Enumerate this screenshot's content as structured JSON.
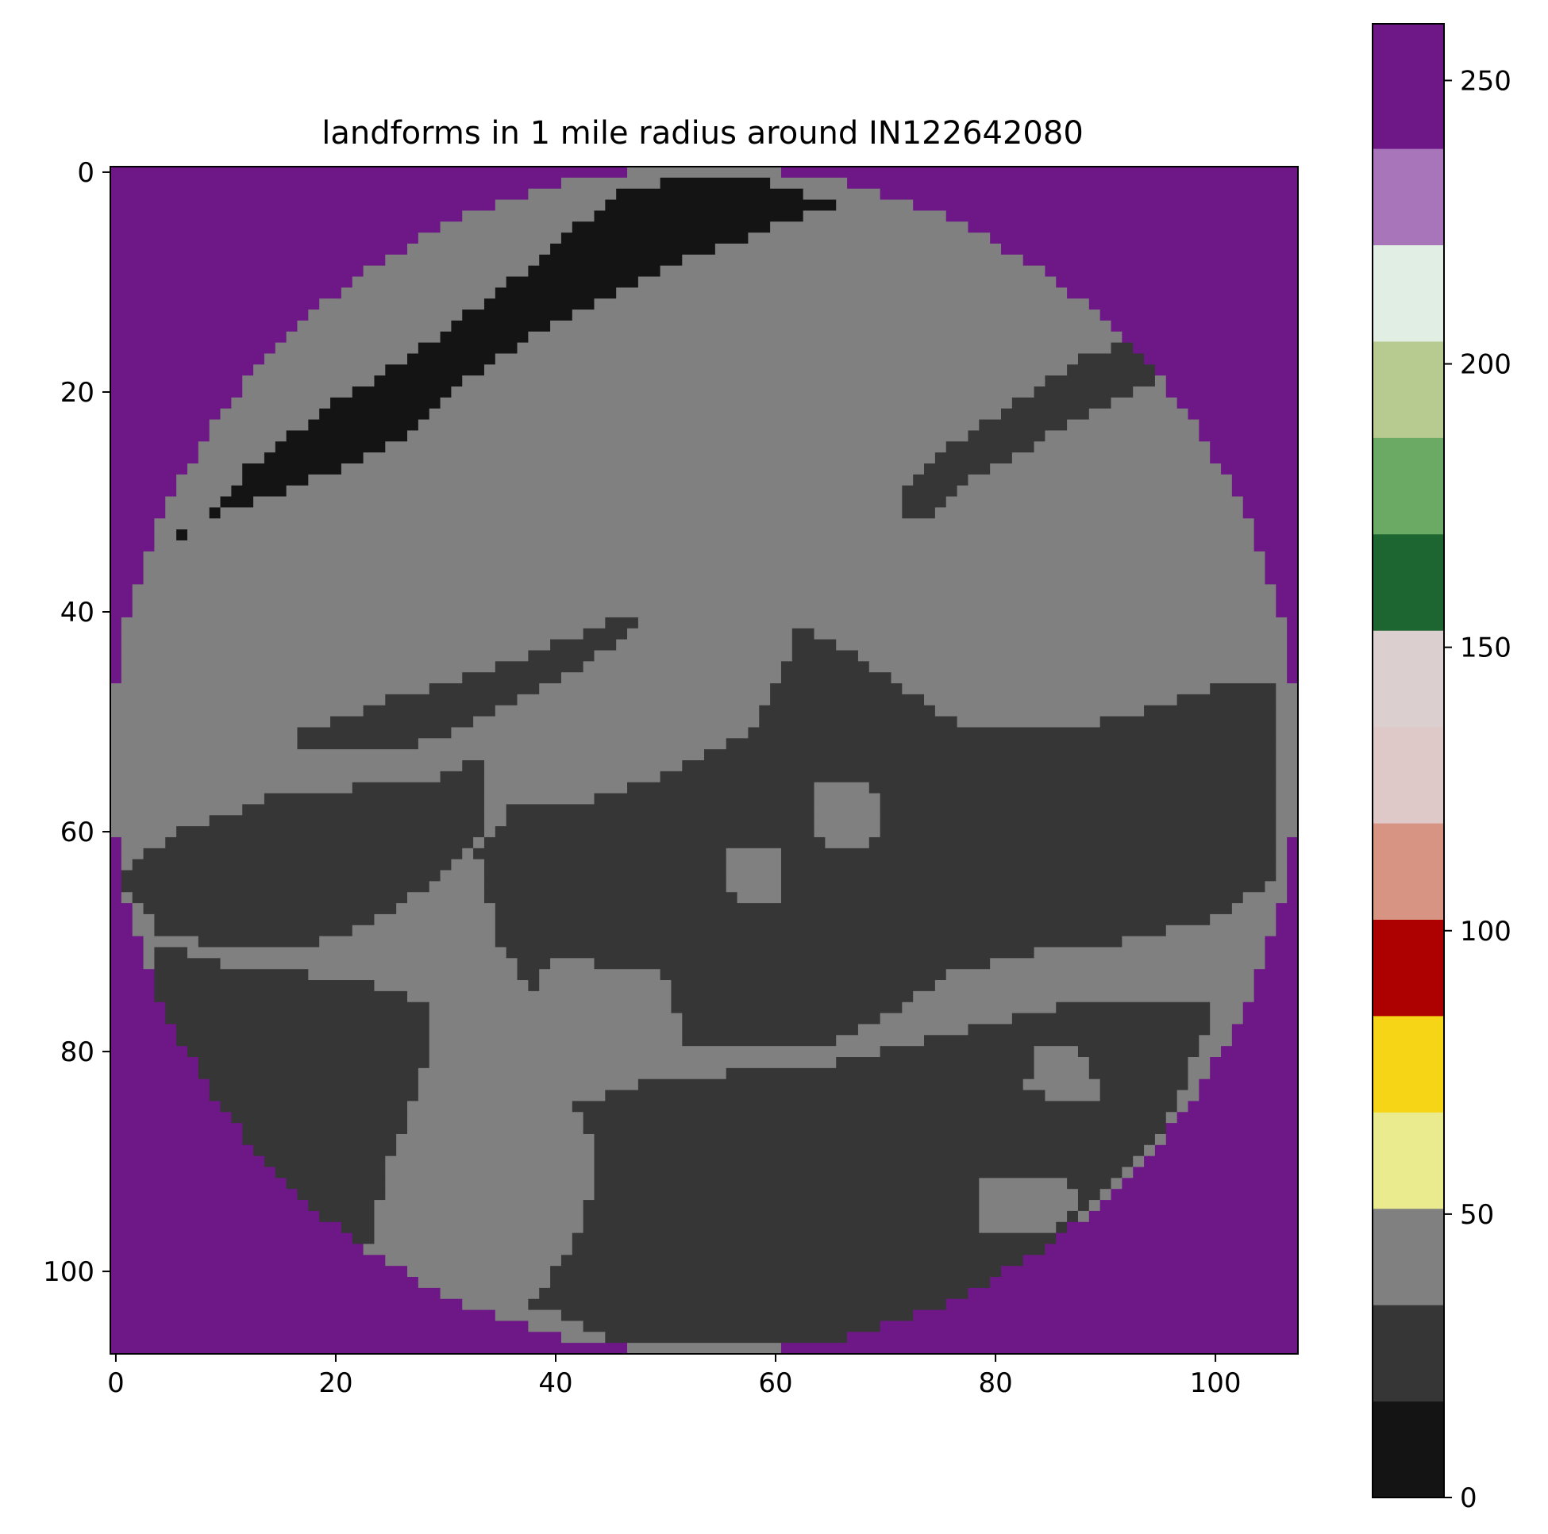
{
  "chart_data": [
    {
      "type": "heatmap",
      "title": "landforms in 1 mile radius around IN122642080",
      "xlabel": "",
      "ylabel": "",
      "grid_size": [
        108,
        108
      ],
      "xlim": [
        -0.5,
        107.5
      ],
      "ylim": [
        107.5,
        -0.5
      ],
      "xticks": [
        0,
        20,
        40,
        60,
        80,
        100
      ],
      "yticks": [
        0,
        20,
        40,
        60,
        80,
        100
      ],
      "grid": false,
      "outside_circle_value": 255,
      "circle": {
        "center": [
          53.5,
          53.5
        ],
        "radius": 54
      },
      "background_value": 45,
      "regions": [
        {
          "value": 5,
          "description": "dark band upper-left",
          "polygon": [
            [
              6,
              34
            ],
            [
              12,
              27
            ],
            [
              20,
              21
            ],
            [
              28,
              16
            ],
            [
              36,
              10
            ],
            [
              42,
              5
            ],
            [
              46,
              2
            ],
            [
              50,
              1
            ],
            [
              60,
              1
            ],
            [
              66,
              3
            ],
            [
              60,
              5
            ],
            [
              52,
              8
            ],
            [
              46,
              11
            ],
            [
              38,
              15
            ],
            [
              32,
              19
            ],
            [
              25,
              25
            ],
            [
              18,
              28
            ],
            [
              10,
              31
            ],
            [
              6,
              33
            ]
          ]
        },
        {
          "value": 25,
          "description": "ridge upper-right",
          "polygon": [
            [
              72,
              29
            ],
            [
              76,
              25
            ],
            [
              82,
              21
            ],
            [
              88,
              17
            ],
            [
              93,
              15
            ],
            [
              96,
              18
            ],
            [
              91,
              21
            ],
            [
              85,
              24
            ],
            [
              78,
              28
            ],
            [
              74,
              32
            ],
            [
              72,
              32
            ]
          ]
        },
        {
          "value": 25,
          "description": "thin streak left-center",
          "polygon": [
            [
              17,
              51
            ],
            [
              25,
              48
            ],
            [
              32,
              46
            ],
            [
              40,
              43
            ],
            [
              47,
              40
            ],
            [
              48,
              41
            ],
            [
              41,
              46
            ],
            [
              33,
              50
            ],
            [
              25,
              53
            ],
            [
              17,
              52
            ]
          ]
        },
        {
          "value": 25,
          "description": "central-east dark mass",
          "polygon": [
            [
              62,
              41
            ],
            [
              66,
              43
            ],
            [
              72,
              47
            ],
            [
              78,
              51
            ],
            [
              86,
              51
            ],
            [
              94,
              49
            ],
            [
              100,
              47
            ],
            [
              106,
              46
            ],
            [
              106,
              64
            ],
            [
              100,
              68
            ],
            [
              92,
              70
            ],
            [
              84,
              71
            ],
            [
              76,
              73
            ],
            [
              70,
              77
            ],
            [
              66,
              79
            ],
            [
              60,
              80
            ],
            [
              52,
              80
            ],
            [
              50,
              73
            ],
            [
              44,
              72
            ],
            [
              40,
              71
            ],
            [
              38,
              75
            ],
            [
              35,
              70
            ],
            [
              33,
              62
            ],
            [
              36,
              58
            ],
            [
              44,
              57
            ],
            [
              52,
              54
            ],
            [
              58,
              51
            ],
            [
              61,
              45
            ]
          ]
        },
        {
          "value": 25,
          "description": "lower-left dark region",
          "polygon": [
            [
              0,
              64
            ],
            [
              6,
              60
            ],
            [
              14,
              57
            ],
            [
              22,
              56
            ],
            [
              28,
              56
            ],
            [
              34,
              53
            ],
            [
              34,
              59
            ],
            [
              30,
              64
            ],
            [
              24,
              68
            ],
            [
              16,
              71
            ],
            [
              8,
              70
            ],
            [
              4,
              70
            ],
            [
              3,
              67
            ]
          ]
        },
        {
          "value": 25,
          "description": "bottom-left dark wedge",
          "polygon": [
            [
              3,
              70
            ],
            [
              10,
              72
            ],
            [
              18,
              73
            ],
            [
              24,
              74
            ],
            [
              29,
              76
            ],
            [
              28,
              82
            ],
            [
              25,
              90
            ],
            [
              23,
              98
            ],
            [
              20,
              98
            ],
            [
              14,
              94
            ],
            [
              8,
              86
            ],
            [
              4,
              77
            ]
          ]
        },
        {
          "value": 25,
          "description": "bottom-center dark band",
          "polygon": [
            [
              42,
              85
            ],
            [
              48,
              83
            ],
            [
              56,
              82
            ],
            [
              62,
              82
            ],
            [
              70,
              80
            ],
            [
              78,
              78
            ],
            [
              86,
              76
            ],
            [
              94,
              76
            ],
            [
              100,
              76
            ],
            [
              96,
              86
            ],
            [
              88,
              95
            ],
            [
              78,
              103
            ],
            [
              68,
              107
            ],
            [
              55,
              107
            ],
            [
              45,
              106
            ],
            [
              38,
              103
            ],
            [
              42,
              97
            ],
            [
              44,
              90
            ]
          ]
        },
        {
          "value": 45,
          "description": "light island center",
          "polygon": [
            [
              64,
              56
            ],
            [
              68,
              55
            ],
            [
              70,
              57
            ],
            [
              69,
              61
            ],
            [
              66,
              62
            ],
            [
              64,
              60
            ]
          ]
        },
        {
          "value": 45,
          "description": "light island center-left",
          "polygon": [
            [
              56,
              62
            ],
            [
              60,
              61
            ],
            [
              61,
              66
            ],
            [
              58,
              67
            ],
            [
              56,
              65
            ]
          ]
        },
        {
          "value": 45,
          "description": "light patch lower-right",
          "polygon": [
            [
              84,
              80
            ],
            [
              88,
              80
            ],
            [
              90,
              84
            ],
            [
              86,
              85
            ],
            [
              83,
              83
            ]
          ]
        },
        {
          "value": 45,
          "description": "light patch bottom-right",
          "polygon": [
            [
              79,
              92
            ],
            [
              86,
              91
            ],
            [
              88,
              94
            ],
            [
              84,
              97
            ],
            [
              79,
              97
            ]
          ]
        }
      ],
      "colorbar": {
        "ticks": [
          0,
          50,
          100,
          150,
          200,
          250
        ],
        "range": [
          0,
          260
        ],
        "boundaries": [
          0,
          17,
          34,
          51,
          68,
          85,
          102,
          119,
          136,
          153,
          170,
          187,
          204,
          221,
          238,
          260
        ],
        "colors": [
          "#141414",
          "#363636",
          "#808080",
          "#eaea8e",
          "#f6d416",
          "#ac0001",
          "#d89482",
          "#dfc8c8",
          "#dccfcf",
          "#1e6631",
          "#6aaa64",
          "#b7ca8f",
          "#e0eee3",
          "#a975ba",
          "#6e1887"
        ]
      }
    }
  ]
}
